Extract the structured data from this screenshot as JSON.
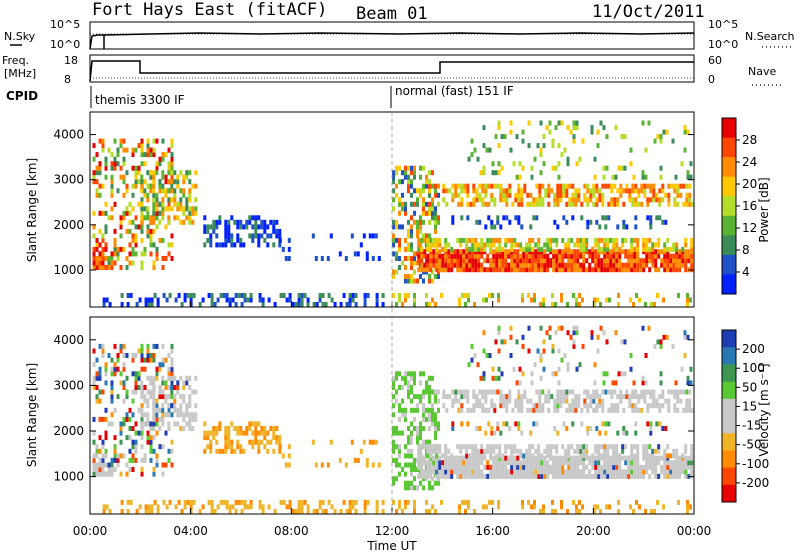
{
  "header": {
    "station": "Fort Hays East (fitACF)",
    "beam": "Beam 01",
    "date": "11/Oct/2011"
  },
  "sky_panel": {
    "left_label": "N.Sky",
    "left_ticks": [
      "10^5",
      "10^0"
    ],
    "right_label": "N.Search",
    "right_ticks": [
      "10^5",
      "10^0"
    ]
  },
  "freq_panel": {
    "left_label_1": "Freq.",
    "left_label_2": "[MHz]",
    "left_ticks": [
      "18",
      "8"
    ],
    "right_label": "Nave",
    "right_ticks": [
      "60",
      "0"
    ]
  },
  "cpid": {
    "label": "CPID",
    "modes": [
      {
        "text": "themis 3300 IF",
        "start_hour": 0
      },
      {
        "text": "normal (fast) 151 IF",
        "start_hour": 12
      }
    ]
  },
  "chart_data": [
    {
      "type": "heatmap",
      "name": "Power",
      "ylabel": "Slant Range [km]",
      "xlabel": "Time UT",
      "x_ticks": [
        "00:00",
        "04:00",
        "08:00",
        "12:00",
        "16:00",
        "20:00",
        "00:00"
      ],
      "y_ticks": [
        "1000",
        "2000",
        "3000",
        "4000"
      ],
      "xlim_hours": [
        0,
        24
      ],
      "ylim_km": [
        180,
        4500
      ],
      "colorbar": {
        "label": "Power [dB]",
        "ticks": [
          "28",
          "24",
          "20",
          "16",
          "12",
          "8",
          "4"
        ]
      }
    },
    {
      "type": "heatmap",
      "name": "Velocity",
      "ylabel": "Slant Range [km]",
      "xlabel": "Time UT",
      "x_ticks": [
        "00:00",
        "04:00",
        "08:00",
        "12:00",
        "16:00",
        "20:00",
        "00:00"
      ],
      "y_ticks": [
        "1000",
        "2000",
        "3000",
        "4000"
      ],
      "xlim_hours": [
        0,
        24
      ],
      "ylim_km": [
        180,
        4500
      ],
      "colorbar": {
        "label": "Velocity [m s⁻¹]",
        "ticks": [
          "200",
          "100",
          "50",
          "15",
          "-15",
          "-50",
          "-100",
          "-200"
        ]
      }
    }
  ],
  "colors": {
    "power_scale": [
      "#0020ff",
      "#1e50c8",
      "#3c8c5a",
      "#5ab432",
      "#b4dc28",
      "#ffc800",
      "#ff8c00",
      "#ff4600",
      "#e60000"
    ],
    "velocity_scale": [
      "#e60000",
      "#ff4600",
      "#ff8c00",
      "#f0b428",
      "#c8c8c8",
      "#c8c8c8",
      "#5ac832",
      "#3c9650",
      "#2878b4",
      "#1e3cb4"
    ],
    "ground_scatter": "#c8c8c8"
  }
}
